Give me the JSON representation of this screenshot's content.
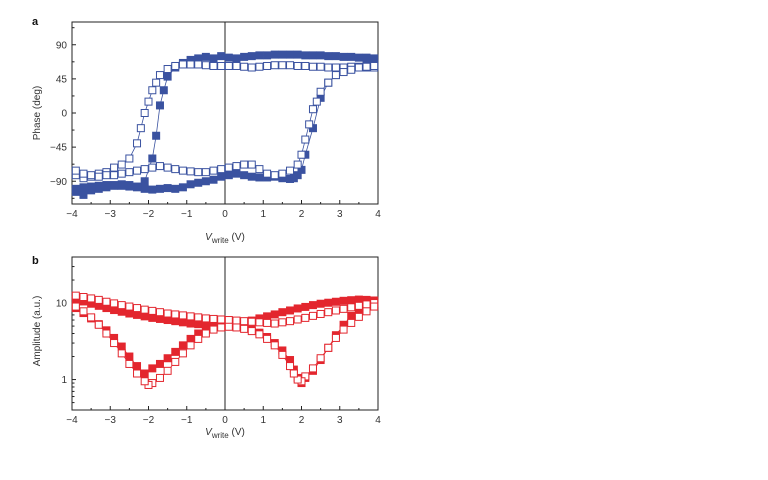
{
  "colors": {
    "phase": "#3a52a0",
    "amplitude": "#e3262e",
    "axis": "#222222"
  },
  "chart_data": [
    {
      "panel": "a",
      "type": "scatter",
      "xlabel": {
        "main": "V",
        "sub": "write",
        "unit": " (V)"
      },
      "ylabel": "Phase (deg)",
      "xlim": [
        -4,
        4
      ],
      "ylim": [
        -120,
        120
      ],
      "xticks": [
        -4,
        -3,
        -2,
        -1,
        0,
        1,
        2,
        3,
        4
      ],
      "yticks": [
        90,
        45,
        0,
        -45,
        -90
      ],
      "series": [
        {
          "marker": "filled-square",
          "x": [
            -3.9,
            -3.7,
            -3.5,
            -3.3,
            -3.1,
            -2.9,
            -2.7,
            -2.5,
            -2.3,
            -2.1,
            -1.9,
            -1.8,
            -1.7,
            -1.6,
            -1.5,
            -1.3,
            -1.1,
            -0.9,
            -0.7,
            -0.5,
            -0.3,
            -0.1,
            0.1,
            0.3,
            0.5,
            0.7,
            0.9,
            1.1,
            1.3,
            1.5,
            1.7,
            1.9,
            2.1,
            2.3,
            2.5,
            2.7,
            2.9,
            3.1,
            3.3,
            3.5,
            3.7,
            3.9
          ],
          "y": [
            -104,
            -108,
            -102,
            -100,
            -98,
            -96,
            -94,
            -95,
            -97,
            -90,
            -60,
            -30,
            10,
            30,
            48,
            60,
            66,
            70,
            72,
            74,
            72,
            75,
            73,
            72,
            74,
            75,
            76,
            76,
            77,
            77,
            77,
            77,
            76,
            76,
            76,
            75,
            75,
            74,
            74,
            73,
            73,
            72
          ]
        },
        {
          "marker": "filled-square",
          "x": [
            3.9,
            3.7,
            3.5,
            3.3,
            3.1,
            2.9,
            2.7,
            2.5,
            2.3,
            2.1,
            2.0,
            1.9,
            1.8,
            1.7,
            1.5,
            1.3,
            1.1,
            0.9,
            0.7,
            0.5,
            0.3,
            0.1,
            -0.1,
            -0.3,
            -0.5,
            -0.7,
            -0.9,
            -1.1,
            -1.3,
            -1.5,
            -1.7,
            -1.9,
            -2.1,
            -2.3,
            -2.5,
            -2.7,
            -2.9,
            -3.1,
            -3.3,
            -3.5,
            -3.7,
            -3.9
          ],
          "y": [
            65,
            63,
            60,
            58,
            55,
            50,
            40,
            20,
            -20,
            -55,
            -75,
            -82,
            -86,
            -87,
            -86,
            -84,
            -85,
            -85,
            -84,
            -82,
            -80,
            -82,
            -84,
            -88,
            -90,
            -92,
            -94,
            -98,
            -100,
            -99,
            -100,
            -101,
            -100,
            -98,
            -97,
            -96,
            -95,
            -95,
            -96,
            -97,
            -98,
            -100
          ]
        },
        {
          "marker": "open-square",
          "x": [
            -3.9,
            -3.7,
            -3.5,
            -3.3,
            -3.1,
            -2.9,
            -2.7,
            -2.5,
            -2.3,
            -2.2,
            -2.1,
            -2.0,
            -1.9,
            -1.8,
            -1.7,
            -1.5,
            -1.3,
            -1.1,
            -0.9,
            -0.7,
            -0.5,
            -0.3,
            -0.1,
            0.1,
            0.3,
            0.5,
            0.7,
            0.9,
            1.1,
            1.3,
            1.5,
            1.7,
            1.9,
            2.1,
            2.3,
            2.5,
            2.7,
            2.9,
            3.1,
            3.3,
            3.5,
            3.7,
            3.9
          ],
          "y": [
            -82,
            -86,
            -84,
            -80,
            -78,
            -72,
            -68,
            -60,
            -40,
            -20,
            0,
            15,
            30,
            40,
            50,
            58,
            62,
            64,
            64,
            64,
            63,
            62,
            62,
            62,
            62,
            61,
            60,
            61,
            62,
            63,
            63,
            63,
            62,
            62,
            61,
            61,
            60,
            60,
            60,
            61,
            61,
            60,
            60
          ]
        },
        {
          "marker": "open-square",
          "x": [
            3.9,
            3.7,
            3.5,
            3.3,
            3.1,
            2.9,
            2.7,
            2.5,
            2.4,
            2.3,
            2.2,
            2.1,
            2.0,
            1.9,
            1.7,
            1.5,
            1.3,
            1.1,
            0.9,
            0.7,
            0.5,
            0.3,
            0.1,
            -0.1,
            -0.3,
            -0.5,
            -0.7,
            -0.9,
            -1.1,
            -1.3,
            -1.5,
            -1.7,
            -1.9,
            -2.1,
            -2.3,
            -2.5,
            -2.7,
            -2.9,
            -3.1,
            -3.3,
            -3.5,
            -3.7,
            -3.9
          ],
          "y": [
            62,
            61,
            60,
            57,
            54,
            50,
            40,
            28,
            15,
            5,
            -15,
            -35,
            -55,
            -68,
            -76,
            -80,
            -82,
            -80,
            -74,
            -68,
            -68,
            -70,
            -72,
            -74,
            -76,
            -78,
            -78,
            -77,
            -76,
            -74,
            -72,
            -70,
            -72,
            -74,
            -76,
            -78,
            -80,
            -82,
            -82,
            -84,
            -82,
            -80,
            -76
          ]
        }
      ]
    },
    {
      "panel": "b",
      "type": "scatter",
      "xlabel": {
        "main": "V",
        "sub": "write",
        "unit": " (V)"
      },
      "ylabel": "Amplitude (a.u.)",
      "xlim": [
        -4,
        4
      ],
      "ylim": [
        0.4,
        40
      ],
      "yscale": "log",
      "xticks": [
        -4,
        -3,
        -2,
        -1,
        0,
        1,
        2,
        3,
        4
      ],
      "yticks": [
        10,
        1
      ],
      "series": [
        {
          "marker": "filled-square",
          "x": [
            -3.9,
            -3.7,
            -3.5,
            -3.3,
            -3.1,
            -2.9,
            -2.7,
            -2.5,
            -2.3,
            -2.1,
            -1.9,
            -1.7,
            -1.5,
            -1.3,
            -1.1,
            -0.9,
            -0.7,
            -0.5,
            -0.3,
            -0.1,
            0.1,
            0.3,
            0.5,
            0.7,
            0.9,
            1.1,
            1.3,
            1.5,
            1.7,
            1.9,
            2.1,
            2.3,
            2.5,
            2.7,
            2.9,
            3.1,
            3.3,
            3.5,
            3.7,
            3.9
          ],
          "y": [
            11,
            10.5,
            9.8,
            9.2,
            8.6,
            8.1,
            7.7,
            7.3,
            7.0,
            6.7,
            6.4,
            6.2,
            6.0,
            5.8,
            5.6,
            5.4,
            5.3,
            5.2,
            5.1,
            5.0,
            5.0,
            5.2,
            5.5,
            5.9,
            6.3,
            6.7,
            7.1,
            7.6,
            8.0,
            8.5,
            8.9,
            9.4,
            9.8,
            10.1,
            10.4,
            10.7,
            10.9,
            11.1,
            11.0,
            10.8
          ]
        },
        {
          "marker": "filled-square",
          "x": [
            3.9,
            3.7,
            3.5,
            3.3,
            3.1,
            2.9,
            2.7,
            2.5,
            2.3,
            2.1,
            2.0,
            1.9,
            1.8,
            1.7,
            1.5,
            1.3,
            1.1,
            0.9,
            0.7,
            0.5,
            0.3,
            0.1,
            -0.1,
            -0.3,
            -0.5,
            -0.7,
            -0.9,
            -1.1,
            -1.3,
            -1.5,
            -1.7,
            -1.9,
            -2.1,
            -2.3,
            -2.5,
            -2.7,
            -2.9,
            -3.1,
            -3.3,
            -3.5,
            -3.7,
            -3.9
          ],
          "y": [
            10.5,
            9.5,
            8.2,
            6.8,
            5.2,
            3.8,
            2.6,
            1.8,
            1.3,
            1.05,
            0.9,
            1.05,
            1.35,
            1.8,
            2.4,
            3.0,
            3.6,
            4.1,
            4.5,
            4.8,
            5.0,
            5.2,
            5.1,
            4.9,
            4.5,
            4.0,
            3.4,
            2.8,
            2.3,
            1.9,
            1.6,
            1.4,
            1.2,
            1.5,
            2.0,
            2.7,
            3.5,
            4.4,
            5.3,
            6.3,
            7.4,
            8.6
          ]
        },
        {
          "marker": "open-square",
          "x": [
            -3.9,
            -3.7,
            -3.5,
            -3.3,
            -3.1,
            -2.9,
            -2.7,
            -2.5,
            -2.3,
            -2.1,
            -1.9,
            -1.7,
            -1.5,
            -1.3,
            -1.1,
            -0.9,
            -0.7,
            -0.5,
            -0.3,
            -0.1,
            0.1,
            0.3,
            0.5,
            0.7,
            0.9,
            1.1,
            1.3,
            1.5,
            1.7,
            1.9,
            2.1,
            2.3,
            2.5,
            2.7,
            2.9,
            3.1,
            3.3,
            3.5,
            3.7,
            3.9
          ],
          "y": [
            12.5,
            12.0,
            11.5,
            11.0,
            10.4,
            9.9,
            9.4,
            9.0,
            8.6,
            8.2,
            7.9,
            7.6,
            7.3,
            7.1,
            6.9,
            6.7,
            6.5,
            6.3,
            6.2,
            6.1,
            6.0,
            5.9,
            5.8,
            5.7,
            5.6,
            5.5,
            5.4,
            5.6,
            5.8,
            6.1,
            6.4,
            6.8,
            7.2,
            7.6,
            8.0,
            8.4,
            8.8,
            9.2,
            9.6,
            10.0
          ]
        },
        {
          "marker": "open-square",
          "x": [
            3.9,
            3.7,
            3.5,
            3.3,
            3.1,
            2.9,
            2.7,
            2.5,
            2.3,
            2.1,
            2.0,
            1.9,
            1.8,
            1.7,
            1.5,
            1.3,
            1.1,
            0.9,
            0.7,
            0.5,
            0.3,
            0.1,
            -0.1,
            -0.3,
            -0.5,
            -0.7,
            -0.9,
            -1.1,
            -1.3,
            -1.5,
            -1.7,
            -1.9,
            -2.0,
            -2.1,
            -2.3,
            -2.5,
            -2.7,
            -2.9,
            -3.1,
            -3.3,
            -3.5,
            -3.7,
            -3.9
          ],
          "y": [
            9.0,
            7.8,
            6.6,
            5.5,
            4.5,
            3.5,
            2.6,
            1.9,
            1.4,
            1.1,
            0.95,
            1.0,
            1.2,
            1.5,
            2.1,
            2.8,
            3.4,
            3.9,
            4.3,
            4.6,
            4.8,
            4.9,
            4.8,
            4.5,
            4.0,
            3.4,
            2.8,
            2.2,
            1.7,
            1.3,
            1.05,
            0.9,
            0.85,
            0.95,
            1.2,
            1.6,
            2.2,
            3.0,
            4.0,
            5.2,
            6.5,
            7.8,
            9.0
          ]
        }
      ]
    }
  ]
}
